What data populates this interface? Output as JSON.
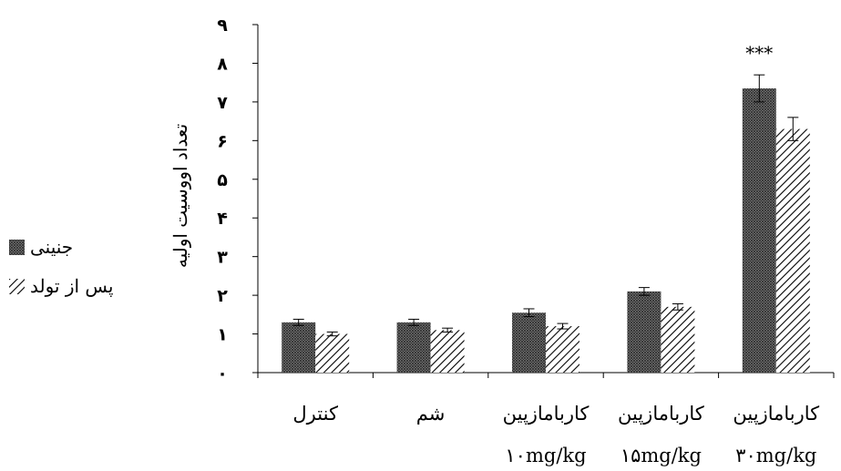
{
  "chart_data": {
    "type": "bar",
    "title": "",
    "xlabel": "",
    "ylabel": "تعداد اووسیت اولیه",
    "ylim": [
      0,
      9
    ],
    "yticks": [
      "۰",
      "۱",
      "۲",
      "۳",
      "۴",
      "۵",
      "۶",
      "۷",
      "۸",
      "۹"
    ],
    "categories": [
      {
        "line1": "کنترل",
        "line2": ""
      },
      {
        "line1": "شم",
        "line2": ""
      },
      {
        "line1": "کاربامازپین",
        "line2": "۱۰mg/kg"
      },
      {
        "line1": "کاربامازپین",
        "line2": "۱۵mg/kg"
      },
      {
        "line1": "کاربامازپین",
        "line2": "۳۰mg/kg"
      }
    ],
    "series": [
      {
        "name": "جنینی",
        "pattern": "crosshatch",
        "values": [
          1.3,
          1.3,
          1.55,
          2.1,
          7.35
        ],
        "errors": [
          0.08,
          0.08,
          0.1,
          0.1,
          0.35
        ]
      },
      {
        "name": "پس از تولد",
        "pattern": "diagonal",
        "values": [
          1.0,
          1.1,
          1.2,
          1.7,
          6.3
        ],
        "errors": [
          0.05,
          0.05,
          0.07,
          0.08,
          0.3
        ]
      }
    ],
    "annotations": [
      {
        "category_index": 4,
        "text": "***"
      }
    ],
    "legend_position": "left",
    "grid": false
  }
}
